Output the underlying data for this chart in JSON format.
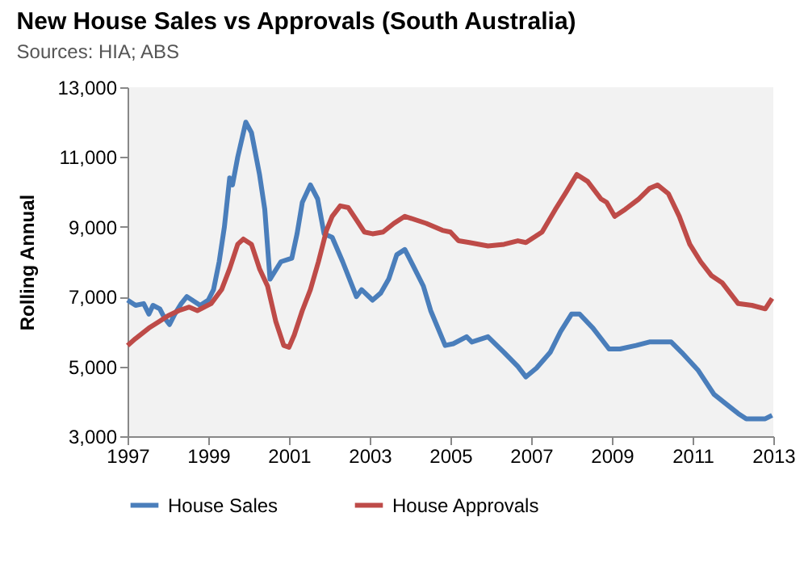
{
  "chart_data": {
    "type": "line",
    "title": "New House Sales vs Approvals (South Australia)",
    "subtitle": "Sources: HIA; ABS",
    "ylabel": "Rolling Annual",
    "xlim": [
      1997,
      2013
    ],
    "xticks": [
      1997,
      1999,
      2001,
      2003,
      2005,
      2007,
      2009,
      2011,
      2013
    ],
    "ylim": [
      3000,
      13000
    ],
    "yticks": [
      {
        "value": 3000,
        "label": "3,000"
      },
      {
        "value": 5000,
        "label": "5,000"
      },
      {
        "value": 7000,
        "label": "7,000"
      },
      {
        "value": 9000,
        "label": "9,000"
      },
      {
        "value": 11000,
        "label": "11,000"
      },
      {
        "value": 13000,
        "label": "13,000"
      }
    ],
    "grid": false,
    "legend": "bottom",
    "series": [
      {
        "name": "House Sales",
        "color": "#4a7ebb",
        "x": [
          1997.0,
          1997.2,
          1997.4,
          1997.53,
          1997.63,
          1997.8,
          1997.91,
          1998.04,
          1998.17,
          1998.33,
          1998.47,
          1998.67,
          1998.8,
          1999.0,
          1999.13,
          1999.27,
          1999.4,
          1999.53,
          1999.6,
          1999.73,
          1999.93,
          2000.07,
          2000.27,
          2000.4,
          2000.53,
          2000.8,
          2001.07,
          2001.2,
          2001.33,
          2001.53,
          2001.71,
          2001.87,
          2002.07,
          2002.33,
          2002.67,
          2002.8,
          2003.07,
          2003.27,
          2003.47,
          2003.67,
          2003.87,
          2004.07,
          2004.33,
          2004.51,
          2004.87,
          2005.07,
          2005.4,
          2005.53,
          2005.93,
          2006.33,
          2006.67,
          2006.87,
          2007.13,
          2007.47,
          2007.73,
          2008.0,
          2008.2,
          2008.53,
          2008.73,
          2008.93,
          2009.2,
          2009.6,
          2009.93,
          2010.47,
          2010.73,
          2011.13,
          2011.53,
          2011.8,
          2012.13,
          2012.33,
          2012.8,
          2012.97
        ],
        "values": [
          6900,
          6750,
          6800,
          6500,
          6750,
          6650,
          6400,
          6200,
          6500,
          6800,
          7000,
          6850,
          6750,
          6900,
          7200,
          8000,
          9000,
          10400,
          10200,
          11000,
          12000,
          11700,
          10500,
          9500,
          7500,
          8000,
          8100,
          8800,
          9700,
          10200,
          9800,
          8800,
          8700,
          8000,
          7000,
          7200,
          6900,
          7100,
          7500,
          8200,
          8350,
          7900,
          7300,
          6600,
          5600,
          5650,
          5850,
          5700,
          5850,
          5400,
          5000,
          4700,
          4950,
          5400,
          6000,
          6500,
          6500,
          6100,
          5800,
          5500,
          5500,
          5600,
          5700,
          5700,
          5400,
          4900,
          4200,
          3950,
          3650,
          3500,
          3500,
          3600
        ]
      },
      {
        "name": "House Approvals",
        "color": "#be4b48",
        "x": [
          1997.0,
          1997.2,
          1997.53,
          1997.8,
          1998.0,
          1998.27,
          1998.53,
          1998.73,
          1999.07,
          1999.33,
          1999.53,
          1999.73,
          1999.87,
          2000.07,
          2000.27,
          2000.47,
          2000.67,
          2000.87,
          2001.0,
          2001.13,
          2001.33,
          2001.53,
          2001.73,
          2001.93,
          2002.07,
          2002.27,
          2002.47,
          2002.67,
          2002.87,
          2003.07,
          2003.33,
          2003.6,
          2003.87,
          2004.4,
          2004.8,
          2005.0,
          2005.2,
          2005.47,
          2005.93,
          2006.33,
          2006.67,
          2006.87,
          2007.27,
          2007.6,
          2007.87,
          2008.13,
          2008.4,
          2008.73,
          2008.87,
          2009.07,
          2009.33,
          2009.67,
          2009.93,
          2010.13,
          2010.4,
          2010.67,
          2010.93,
          2011.2,
          2011.47,
          2011.73,
          2011.93,
          2012.13,
          2012.47,
          2012.8,
          2012.97
        ],
        "values": [
          5600,
          5800,
          6100,
          6300,
          6450,
          6600,
          6700,
          6600,
          6800,
          7200,
          7800,
          8500,
          8650,
          8500,
          7800,
          7300,
          6300,
          5600,
          5550,
          5900,
          6600,
          7200,
          8000,
          8900,
          9300,
          9600,
          9550,
          9200,
          8850,
          8800,
          8850,
          9100,
          9300,
          9100,
          8900,
          8850,
          8600,
          8550,
          8450,
          8500,
          8600,
          8550,
          8850,
          9500,
          10000,
          10500,
          10300,
          9800,
          9700,
          9300,
          9500,
          9800,
          10100,
          10200,
          9950,
          9300,
          8500,
          8000,
          7600,
          7400,
          7100,
          6800,
          6750,
          6650,
          6950
        ]
      }
    ]
  }
}
